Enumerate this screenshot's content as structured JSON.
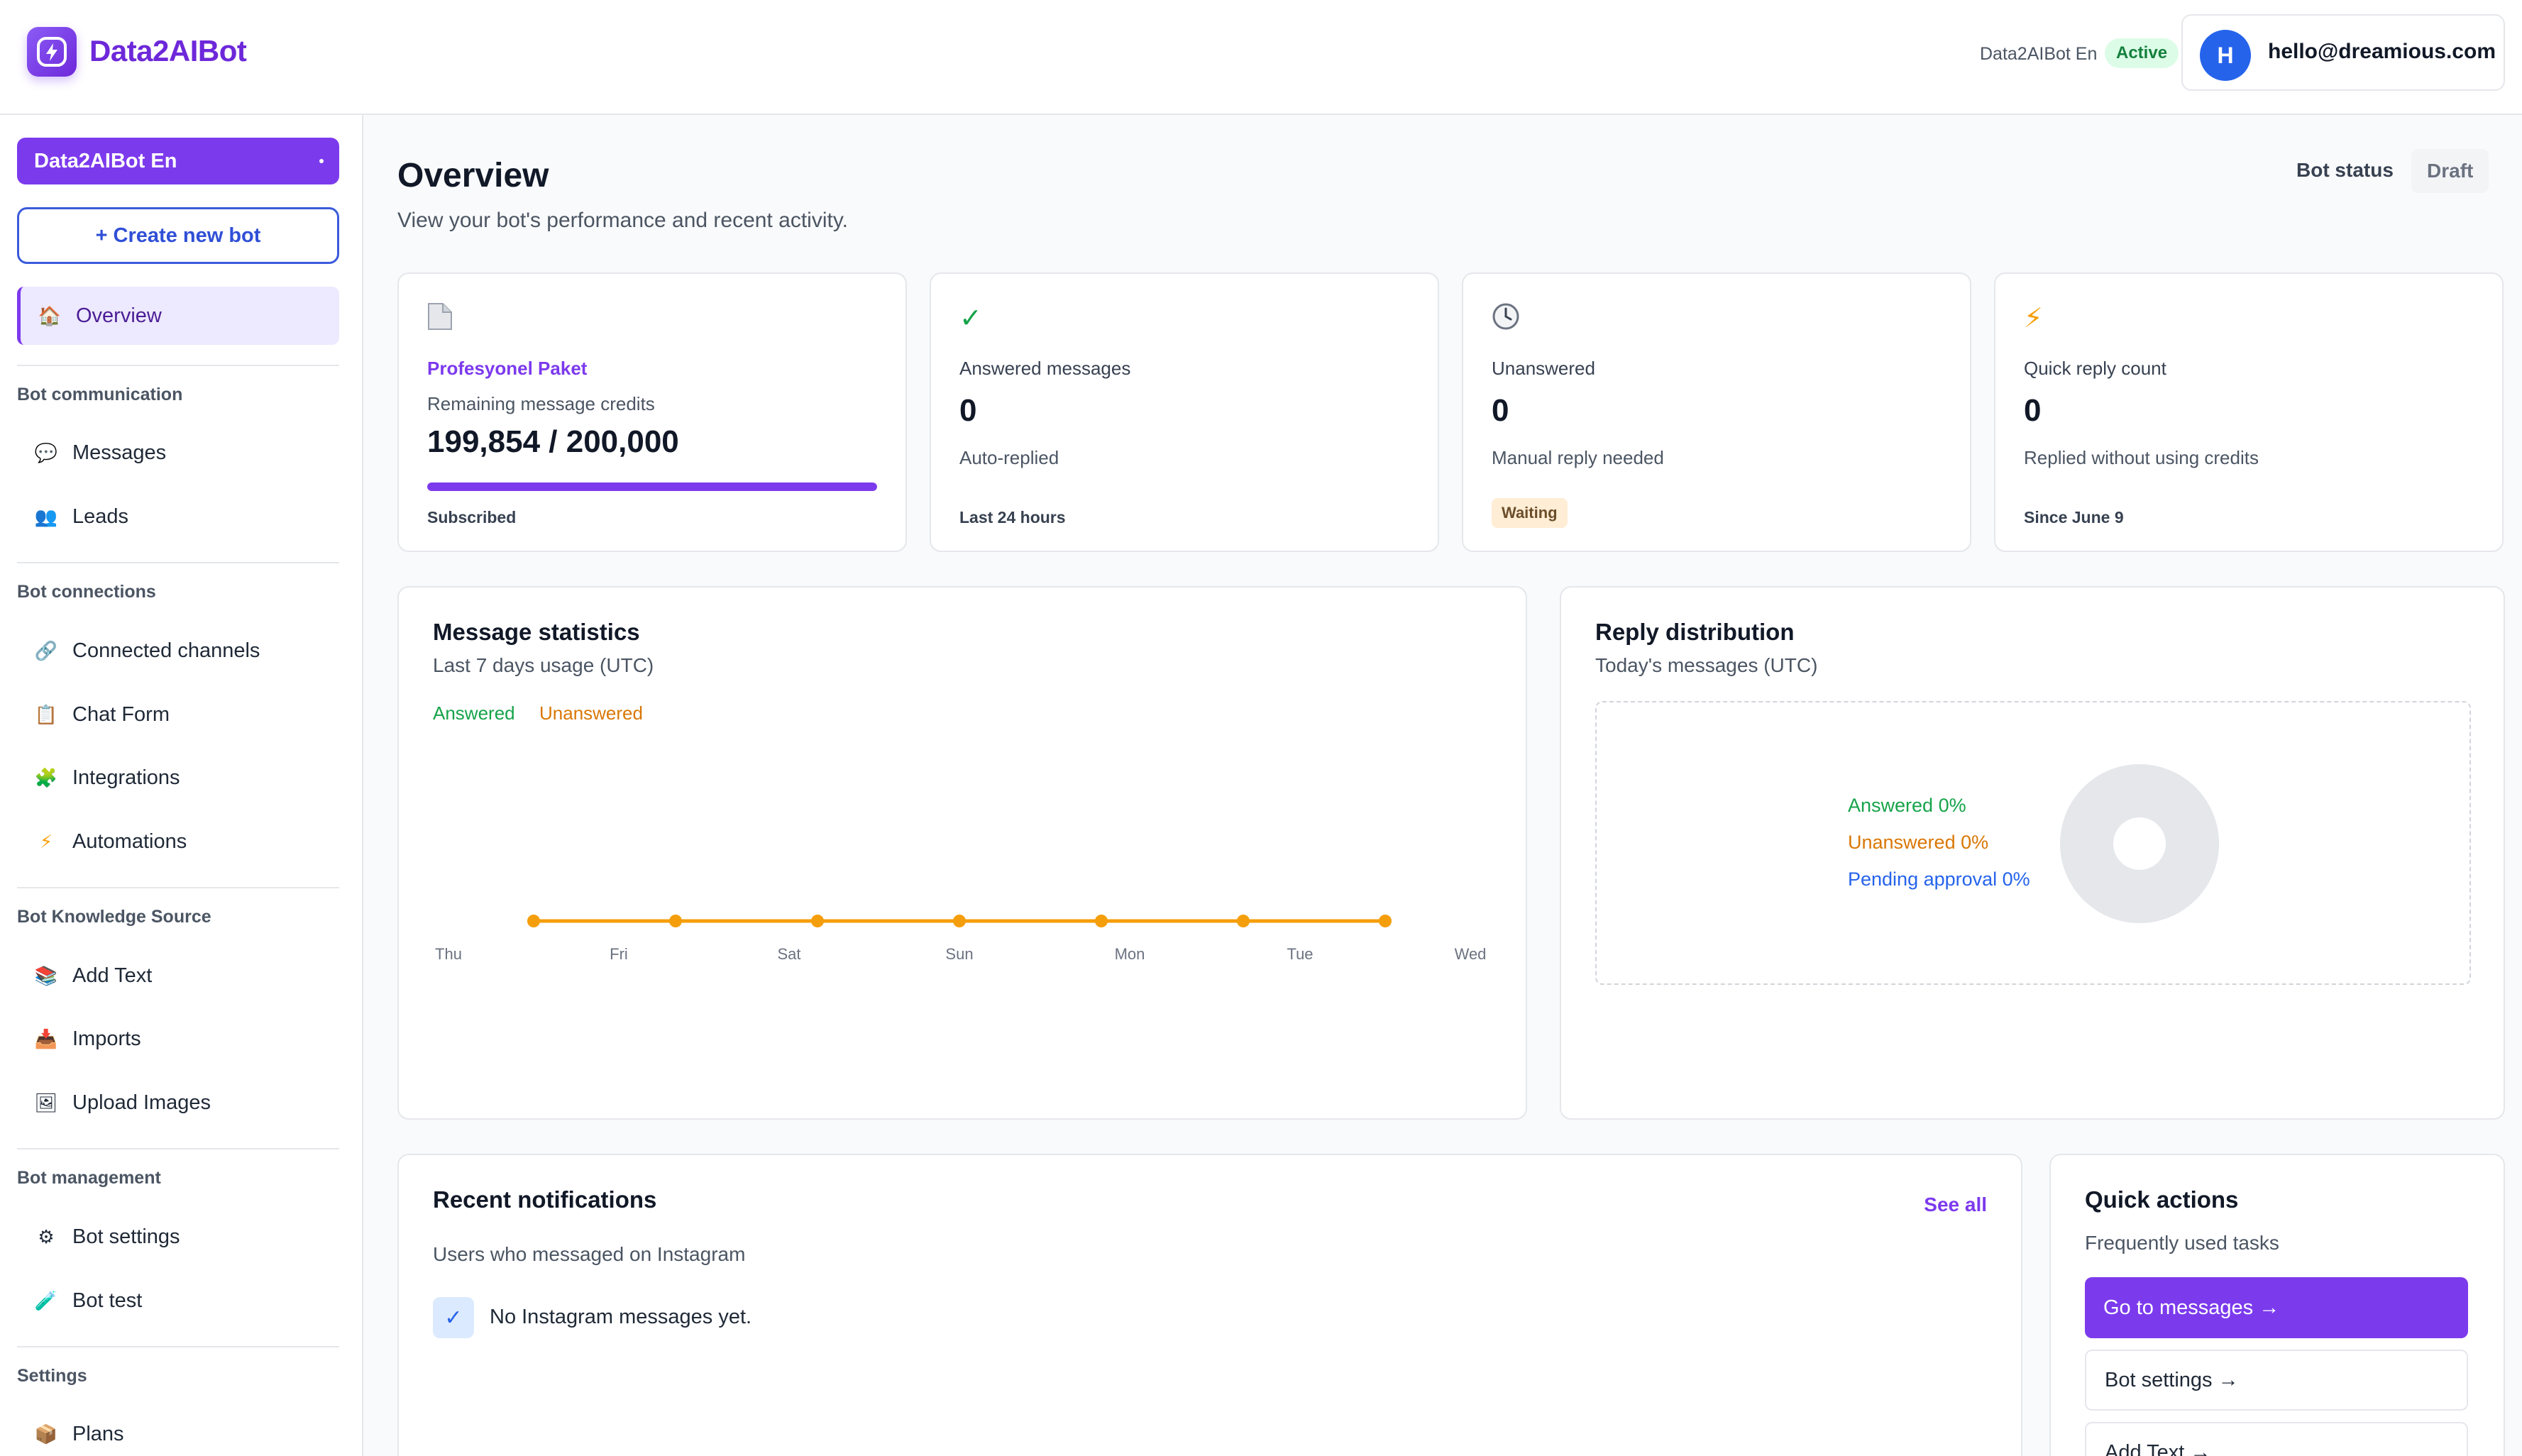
{
  "header": {
    "brand": "Data2AIBot",
    "bot_name": "Data2AIBot En",
    "status_badge": "Active",
    "user_initial": "H",
    "user_email": "hello@dreamious.com"
  },
  "sidebar": {
    "bot_selector": "Data2AIBot En",
    "create_button": "+ Create new bot",
    "overview": {
      "label": "Overview",
      "icon": "house-icon"
    },
    "sections": {
      "communication": "Bot communication",
      "connections": "Bot connections",
      "knowledge": "Bot Knowledge Source",
      "management": "Bot management",
      "settings": "Settings"
    },
    "items": {
      "messages": "Messages",
      "leads": "Leads",
      "connected_channels": "Connected channels",
      "chat_form": "Chat Form",
      "integrations": "Integrations",
      "automations": "Automations",
      "add_text": "Add Text",
      "imports": "Imports",
      "upload_images": "Upload Images",
      "bot_settings": "Bot settings",
      "bot_test": "Bot test",
      "plans": "Plans"
    }
  },
  "overview": {
    "title": "Overview",
    "subtitle": "View your bot's performance and recent activity.",
    "bot_status_label": "Bot status",
    "bot_status_value": "Draft"
  },
  "stats": {
    "credits": {
      "plan": "Profesyonel Paket",
      "label": "Remaining message credits",
      "value": "199,854 / 200,000",
      "progress_fraction": 0.99927,
      "footer": "Subscribed"
    },
    "answered": {
      "title": "Answered messages",
      "value": "0",
      "note": "Auto-replied",
      "footer": "Last 24 hours"
    },
    "unanswered": {
      "title": "Unanswered",
      "value": "0",
      "note": "Manual reply needed",
      "badge": "Waiting"
    },
    "quick_reply": {
      "title": "Quick reply count",
      "value": "0",
      "note": "Replied without using credits",
      "footer": "Since June 9"
    }
  },
  "message_stats": {
    "title": "Message statistics",
    "subtitle": "Last 7 days usage (UTC)",
    "legend_answered": "Answered",
    "legend_unanswered": "Unanswered"
  },
  "chart_data": {
    "type": "line",
    "categories": [
      "Thu",
      "Fri",
      "Sat",
      "Sun",
      "Mon",
      "Tue",
      "Wed"
    ],
    "series": [
      {
        "name": "Unanswered",
        "values": [
          0,
          0,
          0,
          0,
          0,
          0,
          0
        ],
        "color": "#f59e0b"
      }
    ],
    "title": "Message statistics",
    "xlabel": "",
    "ylabel": "",
    "grid": false,
    "legend": "top-left"
  },
  "reply_distribution": {
    "title": "Reply distribution",
    "subtitle": "Today's messages (UTC)",
    "answered": "Answered 0%",
    "unanswered": "Unanswered 0%",
    "pending": "Pending approval 0%"
  },
  "notifications": {
    "title": "Recent notifications",
    "see_all": "See all",
    "subtitle": "Users who messaged on Instagram",
    "empty": "No Instagram messages yet."
  },
  "quick_actions": {
    "title": "Quick actions",
    "subtitle": "Frequently used tasks",
    "go_to_messages": "Go to messages →",
    "bot_settings": "Bot settings →",
    "add_text": "Add Text →"
  },
  "colors": {
    "accent": "#7c3aed",
    "answered": "#16a34a",
    "unanswered": "#d97706",
    "pending": "#2563eb"
  }
}
